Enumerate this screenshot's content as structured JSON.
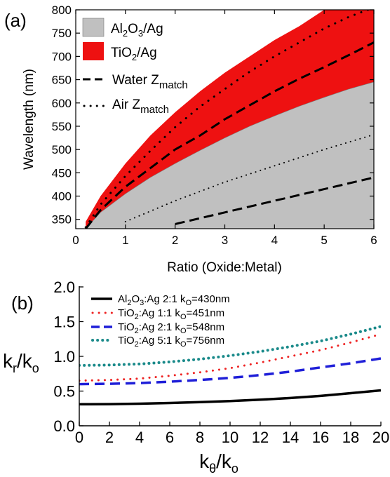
{
  "colors": {
    "al2o3_fill": "#c0c0c0",
    "tio2_fill": "#ee1111",
    "series_b_black": "#000000",
    "series_b_red": "#ee2222",
    "series_b_blue": "#1f1fd8",
    "series_b_teal": "#1a8a8a"
  },
  "chart_data": [
    {
      "panel_label": "(a)",
      "type": "area",
      "xlabel": "Ratio (Oxide:Metal)",
      "ylabel": "Wavelength (nm)",
      "xlim": [
        0,
        6
      ],
      "ylim": [
        330,
        800
      ],
      "xticks": [
        "0",
        "1",
        "2",
        "3",
        "4",
        "5",
        "6"
      ],
      "yticks": [
        "350",
        "400",
        "450",
        "500",
        "550",
        "600",
        "650",
        "700",
        "750",
        "800"
      ],
      "legend_position": "top-left",
      "legend": {
        "al2o3": {
          "base": "Al",
          "sub1": "2",
          "mid": "O",
          "sub2": "3",
          "tail": "/Ag"
        },
        "tio2": {
          "base": "TiO",
          "sub1": "2",
          "tail": "/Ag"
        },
        "water": {
          "base": "Water Z",
          "sub": "match"
        },
        "air": {
          "base": "Air Z",
          "sub": "match"
        }
      },
      "series": [
        {
          "key": "al2o3",
          "style": "filled-area",
          "x": [
            0.2,
            0.5,
            1,
            1.5,
            2,
            2.5,
            3,
            3.5,
            4,
            4.5,
            5,
            5.5,
            6
          ],
          "upper": [
            330,
            365,
            405,
            440,
            470,
            498,
            525,
            550,
            572,
            593,
            612,
            630,
            645
          ],
          "lower": 330
        },
        {
          "key": "tio2",
          "style": "filled-area",
          "x": [
            0.2,
            0.5,
            1,
            1.5,
            2,
            2.5,
            3,
            3.5,
            4,
            4.5,
            5,
            5.5,
            6
          ],
          "upper": [
            345,
            400,
            470,
            530,
            580,
            625,
            665,
            700,
            735,
            765,
            800,
            800,
            800
          ],
          "lower": [
            330,
            365,
            405,
            440,
            470,
            498,
            525,
            550,
            572,
            593,
            612,
            630,
            645
          ]
        },
        {
          "key": "tio2_water",
          "style": "dash",
          "x": [
            0.2,
            0.5,
            1,
            1.5,
            2,
            2.5,
            3,
            3.5,
            4,
            4.5,
            5,
            5.5,
            6
          ],
          "y": [
            330,
            370,
            420,
            460,
            500,
            530,
            565,
            595,
            625,
            652,
            677,
            703,
            730
          ]
        },
        {
          "key": "tio2_air",
          "style": "dot",
          "x": [
            0.2,
            0.5,
            1,
            1.5,
            2,
            2.5,
            3,
            3.5,
            4,
            4.5,
            5,
            5.5,
            6
          ],
          "y": [
            333,
            382,
            443,
            497,
            548,
            592,
            630,
            667,
            700,
            730,
            760,
            785,
            805
          ]
        },
        {
          "key": "al2o3_water",
          "style": "dash",
          "x": [
            2,
            3,
            4,
            5,
            6
          ],
          "y": [
            340,
            365,
            390,
            415,
            440
          ]
        },
        {
          "key": "al2o3_air",
          "style": "dot",
          "x": [
            1,
            2,
            3,
            4,
            5,
            6
          ],
          "y": [
            345,
            390,
            430,
            465,
            500,
            532
          ]
        }
      ]
    },
    {
      "panel_label": "(b)",
      "type": "line",
      "xlabel": {
        "base": "k",
        "sub": "θ",
        "mid": "/k",
        "sub2": "o"
      },
      "ylabel": {
        "base": "k",
        "sub": "r",
        "mid": "/k",
        "sub2": "o"
      },
      "xlim": [
        0,
        20
      ],
      "ylim": [
        0.0,
        2.0
      ],
      "xticks": [
        "0",
        "2",
        "4",
        "6",
        "8",
        "10",
        "12",
        "14",
        "16",
        "18",
        "20"
      ],
      "yticks": [
        "0.0",
        "0.5",
        "1.0",
        "1.5",
        "2.0"
      ],
      "legend_position": "top-left",
      "series": [
        {
          "key": "black",
          "style": "solid",
          "label": {
            "a": "Al",
            "s1": "2",
            "b": "O",
            "s2": "3",
            "c": ":Ag 2:1 k",
            "s3": "O",
            "d": "=430nm"
          },
          "x": [
            0,
            2,
            4,
            6,
            8,
            10,
            12,
            14,
            16,
            18,
            20
          ],
          "y": [
            0.31,
            0.312,
            0.318,
            0.328,
            0.34,
            0.356,
            0.376,
            0.4,
            0.43,
            0.47,
            0.51
          ]
        },
        {
          "key": "red",
          "style": "dot",
          "label": {
            "a": "TiO",
            "s1": "2",
            "b": "",
            "s2": "",
            "c": ":Ag 1:1 k",
            "s3": "O",
            "d": "=451nm"
          },
          "x": [
            0,
            2,
            4,
            6,
            8,
            10,
            12,
            14,
            16,
            18,
            20
          ],
          "y": [
            0.65,
            0.66,
            0.68,
            0.72,
            0.77,
            0.83,
            0.91,
            1.0,
            1.09,
            1.2,
            1.32
          ]
        },
        {
          "key": "blue",
          "style": "dash",
          "label": {
            "a": "TiO",
            "s1": "2",
            "b": "",
            "s2": "",
            "c": ":Ag 2:1 k",
            "s3": "O",
            "d": "=548nm"
          },
          "x": [
            0,
            2,
            4,
            6,
            8,
            10,
            12,
            14,
            16,
            18,
            20
          ],
          "y": [
            0.6,
            0.605,
            0.615,
            0.635,
            0.66,
            0.69,
            0.73,
            0.78,
            0.84,
            0.9,
            0.97
          ]
        },
        {
          "key": "teal",
          "style": "dot",
          "label": {
            "a": "TiO",
            "s1": "2",
            "b": "",
            "s2": "",
            "c": ":Ag 5:1 k",
            "s3": "O",
            "d": "=756nm"
          },
          "x": [
            0,
            2,
            4,
            6,
            8,
            10,
            12,
            14,
            16,
            18,
            20
          ],
          "y": [
            0.87,
            0.875,
            0.89,
            0.92,
            0.96,
            1.01,
            1.07,
            1.14,
            1.22,
            1.32,
            1.43
          ]
        }
      ]
    }
  ]
}
